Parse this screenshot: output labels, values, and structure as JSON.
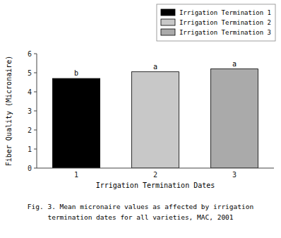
{
  "chart_data": {
    "type": "bar",
    "categories": [
      "1",
      "2",
      "3"
    ],
    "series": [
      {
        "name": "Irrigation Termination 1",
        "color": "#000000",
        "values": [
          4.7,
          null,
          null
        ]
      },
      {
        "name": "Irrigation Termination 2",
        "color": "#c8c8c8",
        "values": [
          null,
          5.05,
          null
        ]
      },
      {
        "name": "Irrigation Termination 3",
        "color": "#aaaaaa",
        "values": [
          null,
          null,
          5.2
        ]
      }
    ],
    "annotations": [
      "b",
      "a",
      "a"
    ],
    "x_label": "Irrigation Termination Dates",
    "y_label": "Fiber Quality (Micronaire)",
    "caption": [
      "Fig. 3. Mean micronaire values as affected by irrigation",
      "termination dates for all varieties, MAC, 2001"
    ],
    "ylim": [
      0,
      6
    ],
    "yticks": [
      0,
      1,
      2,
      3,
      4,
      5,
      6
    ],
    "grid": false,
    "legend": "upper right"
  }
}
